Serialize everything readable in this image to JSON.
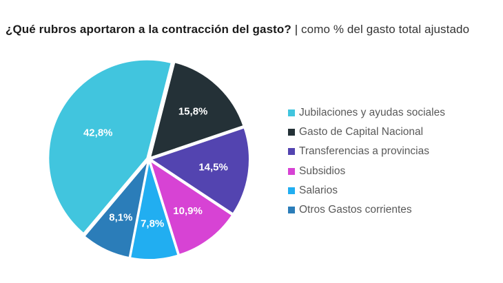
{
  "title": {
    "main": "¿Qué rubros aportaron a la contracción del gasto?",
    "separator": "|",
    "subtitle": "como % del gasto total ajustado"
  },
  "chart_data": {
    "type": "pie",
    "title": "¿Qué rubros aportaron a la contracción del gasto?",
    "subtitle": "como % del gasto total ajustado",
    "legend_position": "right",
    "slices": [
      {
        "label": "Jubilaciones y ayudas sociales",
        "value": 42.8,
        "value_label": "42,8%",
        "color": "#41C5DE"
      },
      {
        "label": "Gasto de Capital Nacional",
        "value": 15.8,
        "value_label": "15,8%",
        "color": "#243137"
      },
      {
        "label": "Transferencias a provincias",
        "value": 14.5,
        "value_label": "14,5%",
        "color": "#5344B0"
      },
      {
        "label": "Subsidios",
        "value": 10.9,
        "value_label": "10,9%",
        "color": "#D743D4"
      },
      {
        "label": "Salarios",
        "value": 7.8,
        "value_label": "7,8%",
        "color": "#21AEF1"
      },
      {
        "label": "Otros Gastos corrientes",
        "value": 8.1,
        "value_label": "8,1%",
        "color": "#2B7DB9"
      }
    ]
  }
}
